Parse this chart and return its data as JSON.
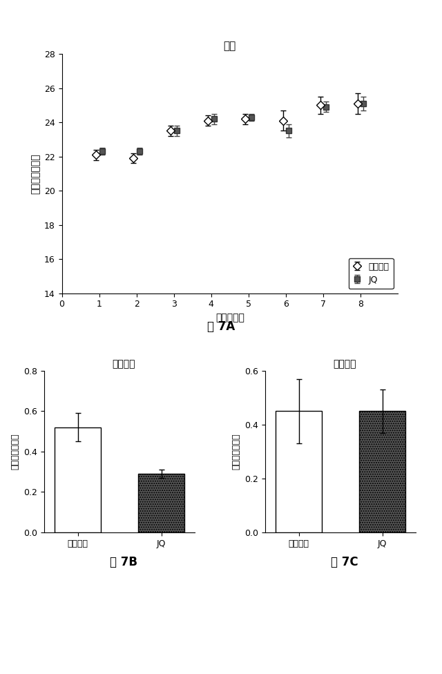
{
  "fig_width": 6.4,
  "fig_height": 9.76,
  "top_chart": {
    "title": "体重",
    "xlabel": "時間（週）",
    "ylabel": "体重（グラム）",
    "xlim": [
      0,
      9
    ],
    "ylim": [
      14.0,
      28.0
    ],
    "yticks": [
      14.0,
      16.0,
      18.0,
      20.0,
      22.0,
      24.0,
      26.0,
      28.0
    ],
    "xticks": [
      0,
      1,
      2,
      3,
      4,
      5,
      6,
      7,
      8
    ],
    "weeks": [
      1,
      2,
      3,
      4,
      5,
      6,
      7,
      8
    ],
    "vehicle_mean": [
      22.1,
      21.9,
      23.5,
      24.1,
      24.2,
      24.1,
      25.0,
      25.1
    ],
    "vehicle_err": [
      0.3,
      0.3,
      0.3,
      0.3,
      0.3,
      0.6,
      0.5,
      0.6
    ],
    "jq_mean": [
      22.3,
      22.3,
      23.5,
      24.2,
      24.3,
      23.5,
      24.9,
      25.1
    ],
    "jq_err": [
      0.2,
      0.2,
      0.3,
      0.3,
      0.2,
      0.4,
      0.3,
      0.4
    ],
    "legend_vehicle": "ビヒクル",
    "legend_jq": "JQ",
    "fig_label": "図 7A"
  },
  "bottom_left": {
    "title": "内臓脂肪",
    "ylabel": "体重（グラム）",
    "ylim": [
      0,
      0.8
    ],
    "yticks": [
      0,
      0.2,
      0.4,
      0.6,
      0.8
    ],
    "categories": [
      "ビヒクル",
      "JQ"
    ],
    "means": [
      0.52,
      0.29
    ],
    "errors": [
      0.07,
      0.02
    ],
    "bar_colors": [
      "white",
      "#555555"
    ],
    "bar_edgecolor": "black",
    "fig_label": "図 7B"
  },
  "bottom_right": {
    "title": "皮下脂肪",
    "ylabel": "体重（グラム）",
    "ylim": [
      0,
      0.6
    ],
    "yticks": [
      0,
      0.2,
      0.4,
      0.6
    ],
    "categories": [
      "ビヒクル",
      "JQ"
    ],
    "means": [
      0.45,
      0.45
    ],
    "errors": [
      0.12,
      0.08
    ],
    "bar_colors": [
      "white",
      "#555555"
    ],
    "bar_edgecolor": "black",
    "fig_label": "図 7C"
  }
}
